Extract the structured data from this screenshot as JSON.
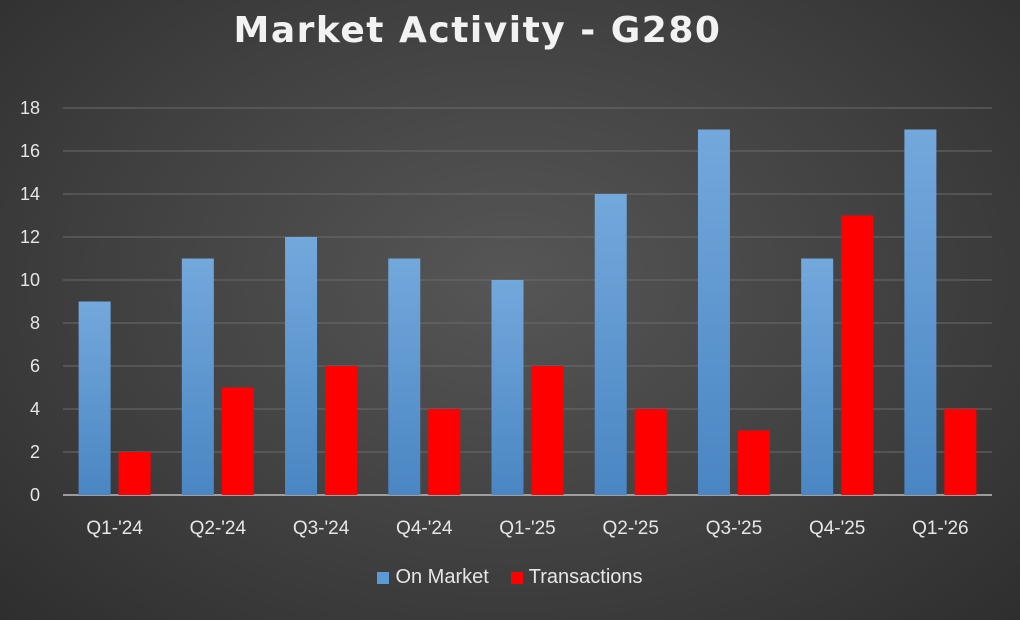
{
  "chart_data": {
    "type": "bar",
    "title": "Market Activity - G280",
    "xlabel": "",
    "ylabel": "",
    "categories": [
      "Q1-'24",
      "Q2-'24",
      "Q3-'24",
      "Q4-'24",
      "Q1-'25",
      "Q2-'25",
      "Q3-'25",
      "Q4-'25",
      "Q1-'26"
    ],
    "series": [
      {
        "name": "On Market",
        "values": [
          9,
          11,
          12,
          11,
          10,
          14,
          17,
          11,
          17
        ],
        "color": "#5b9bd5"
      },
      {
        "name": "Transactions",
        "values": [
          2,
          5,
          6,
          4,
          6,
          4,
          3,
          13,
          4
        ],
        "color": "#ff0000"
      }
    ],
    "ylim": [
      0,
      18
    ],
    "yticks": [
      0,
      2,
      4,
      6,
      8,
      10,
      12,
      14,
      16,
      18
    ],
    "grid": true,
    "legend_position": "bottom"
  }
}
